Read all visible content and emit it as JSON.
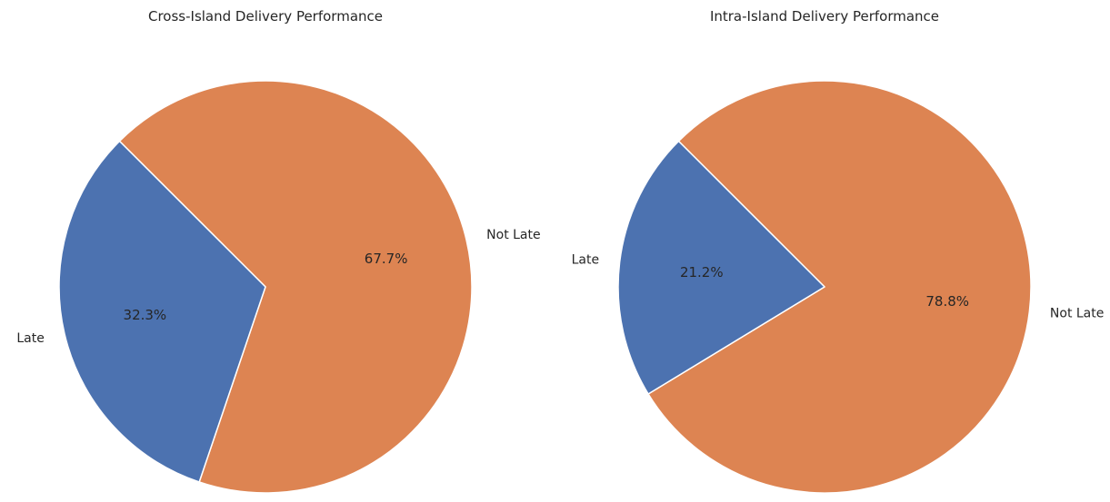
{
  "chart_data": [
    {
      "type": "pie",
      "title": "Cross-Island Delivery Performance",
      "categories": [
        "Late",
        "Not Late"
      ],
      "values": [
        32.3,
        67.7
      ],
      "value_labels": [
        "32.3%",
        "67.7%"
      ],
      "colors": [
        "#4c72b0",
        "#dd8452"
      ],
      "start_angle_deg": 135,
      "direction": "counterclockwise"
    },
    {
      "type": "pie",
      "title": "Intra-Island Delivery Performance",
      "categories": [
        "Late",
        "Not Late"
      ],
      "values": [
        21.2,
        78.8
      ],
      "value_labels": [
        "21.2%",
        "78.8%"
      ],
      "colors": [
        "#4c72b0",
        "#dd8452"
      ],
      "start_angle_deg": 135,
      "direction": "counterclockwise"
    }
  ]
}
